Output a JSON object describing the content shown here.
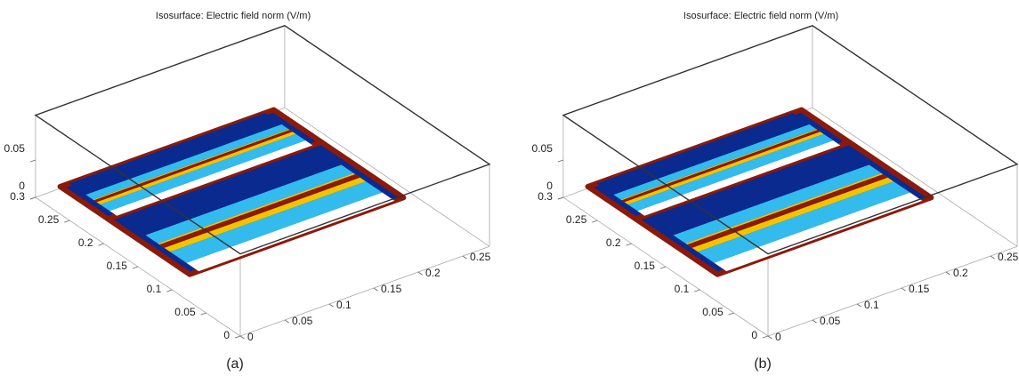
{
  "panels": [
    {
      "title": "Isosurface: Electric field norm (V/m)",
      "caption": "(a)",
      "xticks": [
        0,
        0.05,
        0.1,
        0.15,
        0.2,
        0.25
      ],
      "yticks": [
        0,
        0.05,
        0.1,
        0.15,
        0.2,
        0.25,
        0.3
      ],
      "zticks": [
        0,
        0.05
      ]
    },
    {
      "title": "Isosurface: Electric field norm (V/m)",
      "caption": "(b)",
      "xticks": [
        0,
        0.05,
        0.1,
        0.15,
        0.2,
        0.25
      ],
      "yticks": [
        0,
        0.05,
        0.1,
        0.15,
        0.2,
        0.25,
        0.3
      ],
      "zticks": [
        0,
        0.05
      ]
    }
  ]
}
